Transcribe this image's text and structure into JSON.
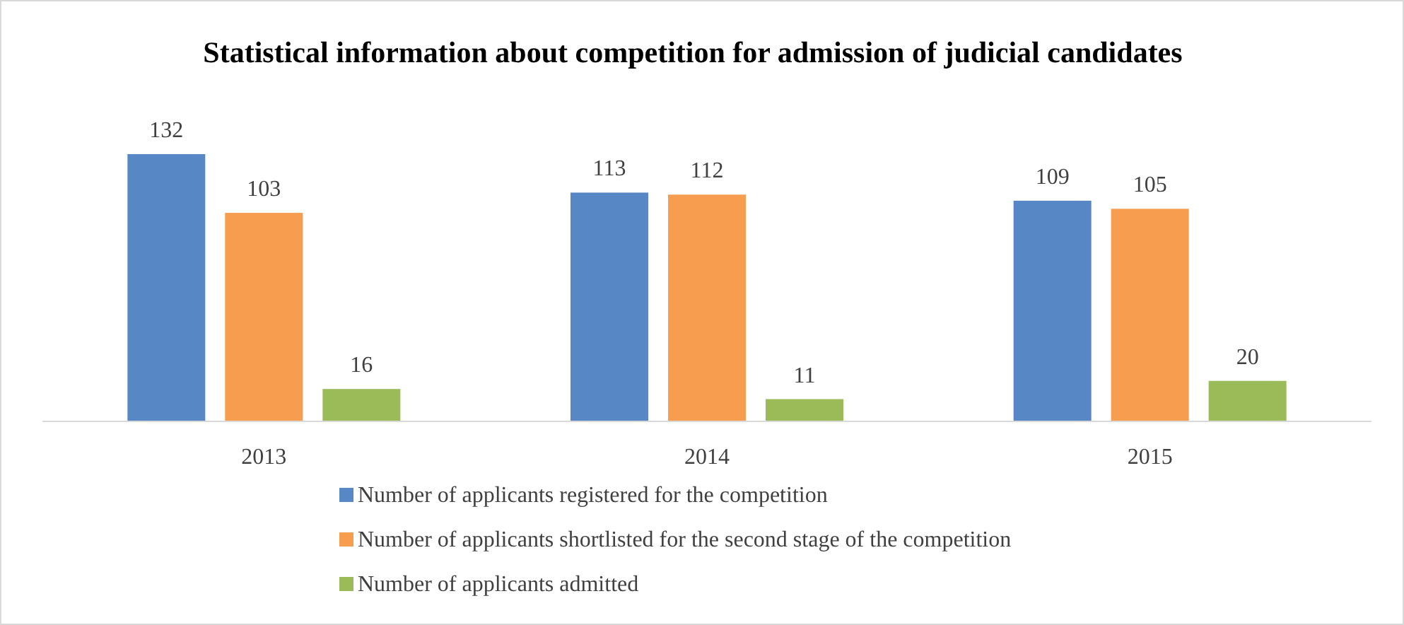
{
  "chart_data": {
    "type": "bar",
    "title": "Statistical information about competition for admission of judicial candidates",
    "categories": [
      "2013",
      "2014",
      "2015"
    ],
    "series": [
      {
        "name": "Number of applicants registered for the competition",
        "color": "#5787c5",
        "values": [
          132,
          113,
          109
        ]
      },
      {
        "name": "Number of applicants shortlisted for the second stage of the competition",
        "color": "#f79d4f",
        "values": [
          103,
          112,
          105
        ]
      },
      {
        "name": "Number of applicants admitted",
        "color": "#9bbb59",
        "values": [
          16,
          11,
          20
        ]
      }
    ],
    "data_labels": true,
    "legend": "bottom"
  }
}
